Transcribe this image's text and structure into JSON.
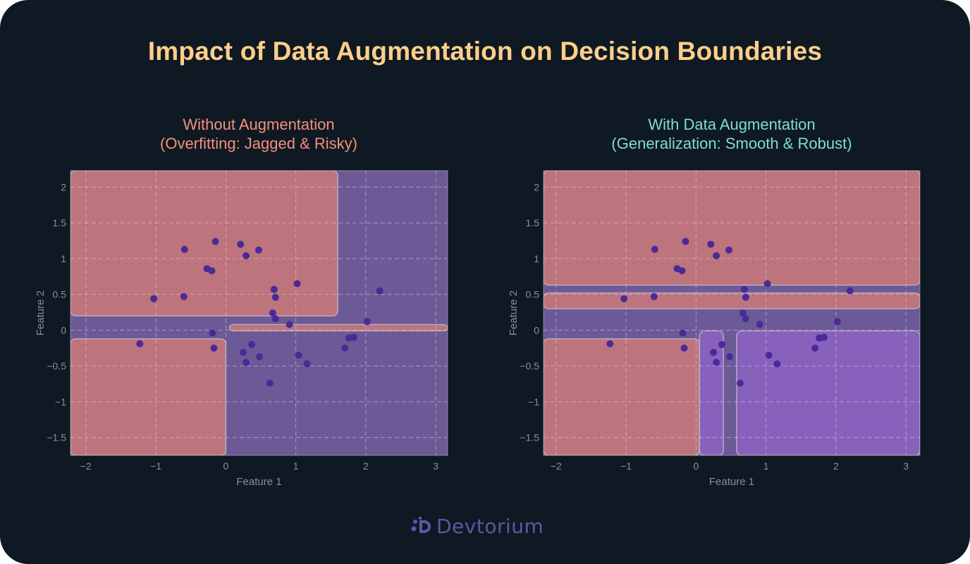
{
  "title": "Impact of Data Augmentation on Decision Boundaries",
  "brand": "Devtorium",
  "colors": {
    "background": "#0f1923",
    "title": "#ffcf8a",
    "left_subtitle": "#f3917c",
    "right_subtitle": "#7fdcd2",
    "region_red": "#bd747c",
    "region_blue": "#6c5a97",
    "region_purple": "#8861bd",
    "points": "#4a2a98",
    "axis_text": "#8a8f96"
  },
  "chart_data": [
    {
      "type": "scatter",
      "title_line1": "Without Augmentation",
      "title_line2": "(Overfitting: Jagged & Risky)",
      "xlabel": "Feature 1",
      "ylabel": "Feature 2",
      "xlim": [
        -2.22,
        3.17
      ],
      "ylim": [
        -1.75,
        2.23
      ],
      "x_ticks": [
        -2,
        -1,
        0,
        1,
        2,
        3
      ],
      "x_tick_labels": [
        "−2",
        "−1",
        "0",
        "1",
        "2",
        "3"
      ],
      "y_ticks": [
        -1.5,
        -1,
        -0.5,
        0,
        0.5,
        1,
        1.5,
        2
      ],
      "y_tick_labels": [
        "−1.5",
        "−1",
        "−0.5",
        "0",
        "0.5",
        "1",
        "1.5",
        "2"
      ],
      "grid": true,
      "background_region": "blue",
      "regions": [
        {
          "class": "red",
          "x0": -2.22,
          "x1": 1.6,
          "y0": 0.2,
          "y1": 2.23
        },
        {
          "class": "red",
          "x0": -2.22,
          "x1": 0.0,
          "y0": -1.75,
          "y1": -0.12
        },
        {
          "class": "red",
          "x0": 0.05,
          "x1": 3.17,
          "y0": -0.01,
          "y1": 0.08
        }
      ],
      "points": [
        {
          "x": -0.59,
          "y": 1.13
        },
        {
          "x": -0.15,
          "y": 1.24
        },
        {
          "x": 0.21,
          "y": 1.2
        },
        {
          "x": 0.29,
          "y": 1.04
        },
        {
          "x": 0.47,
          "y": 1.12
        },
        {
          "x": -0.27,
          "y": 0.86
        },
        {
          "x": -0.2,
          "y": 0.83
        },
        {
          "x": -1.03,
          "y": 0.44
        },
        {
          "x": -0.6,
          "y": 0.47
        },
        {
          "x": 0.69,
          "y": 0.57
        },
        {
          "x": 1.02,
          "y": 0.65
        },
        {
          "x": 0.71,
          "y": 0.46
        },
        {
          "x": 0.67,
          "y": 0.24
        },
        {
          "x": 0.71,
          "y": 0.16
        },
        {
          "x": 0.91,
          "y": 0.08
        },
        {
          "x": 2.2,
          "y": 0.55
        },
        {
          "x": 2.02,
          "y": 0.12
        },
        {
          "x": -0.19,
          "y": -0.04
        },
        {
          "x": -1.23,
          "y": -0.19
        },
        {
          "x": -0.17,
          "y": -0.25
        },
        {
          "x": 0.37,
          "y": -0.2
        },
        {
          "x": 0.25,
          "y": -0.31
        },
        {
          "x": 0.48,
          "y": -0.37
        },
        {
          "x": 0.29,
          "y": -0.45
        },
        {
          "x": 1.04,
          "y": -0.35
        },
        {
          "x": 1.16,
          "y": -0.47
        },
        {
          "x": 1.76,
          "y": -0.11
        },
        {
          "x": 1.83,
          "y": -0.1
        },
        {
          "x": 1.7,
          "y": -0.25
        },
        {
          "x": 0.63,
          "y": -0.74
        }
      ]
    },
    {
      "type": "scatter",
      "title_line1": "With Data Augmentation",
      "title_line2": "(Generalization: Smooth & Robust)",
      "xlabel": "Feature 1",
      "ylabel": "Feature 2",
      "xlim": [
        -2.18,
        3.2
      ],
      "ylim": [
        -1.75,
        2.23
      ],
      "x_ticks": [
        -2,
        -1,
        0,
        1,
        2,
        3
      ],
      "x_tick_labels": [
        "−2",
        "−1",
        "0",
        "1",
        "2",
        "3"
      ],
      "y_ticks": [
        -1.5,
        -1,
        -0.5,
        0,
        0.5,
        1,
        1.5,
        2
      ],
      "y_tick_labels": [
        "−1.5",
        "−1",
        "−0.5",
        "0",
        "0.5",
        "1",
        "1.5",
        "2"
      ],
      "grid": true,
      "background_region": "blue",
      "regions": [
        {
          "class": "red",
          "x0": -2.18,
          "x1": 3.2,
          "y0": 0.63,
          "y1": 2.23
        },
        {
          "class": "red",
          "x0": -2.18,
          "x1": 3.2,
          "y0": 0.3,
          "y1": 0.52
        },
        {
          "class": "red",
          "x0": -2.18,
          "x1": 0.05,
          "y0": -1.75,
          "y1": -0.12
        },
        {
          "class": "purple",
          "x0": 0.05,
          "x1": 0.39,
          "y0": -1.75,
          "y1": -0.01
        },
        {
          "class": "purple",
          "x0": 0.58,
          "x1": 3.2,
          "y0": -1.75,
          "y1": -0.01
        }
      ],
      "points": [
        {
          "x": -0.59,
          "y": 1.13
        },
        {
          "x": -0.15,
          "y": 1.24
        },
        {
          "x": 0.21,
          "y": 1.2
        },
        {
          "x": 0.29,
          "y": 1.04
        },
        {
          "x": 0.47,
          "y": 1.12
        },
        {
          "x": -0.27,
          "y": 0.86
        },
        {
          "x": -0.2,
          "y": 0.83
        },
        {
          "x": -1.03,
          "y": 0.44
        },
        {
          "x": -0.6,
          "y": 0.47
        },
        {
          "x": 0.69,
          "y": 0.57
        },
        {
          "x": 1.02,
          "y": 0.65
        },
        {
          "x": 0.71,
          "y": 0.46
        },
        {
          "x": 0.67,
          "y": 0.24
        },
        {
          "x": 0.71,
          "y": 0.16
        },
        {
          "x": 0.91,
          "y": 0.08
        },
        {
          "x": 2.2,
          "y": 0.55
        },
        {
          "x": 2.02,
          "y": 0.12
        },
        {
          "x": -0.19,
          "y": -0.04
        },
        {
          "x": -1.23,
          "y": -0.19
        },
        {
          "x": -0.17,
          "y": -0.25
        },
        {
          "x": 0.37,
          "y": -0.2
        },
        {
          "x": 0.25,
          "y": -0.31
        },
        {
          "x": 0.48,
          "y": -0.37
        },
        {
          "x": 0.29,
          "y": -0.45
        },
        {
          "x": 1.04,
          "y": -0.35
        },
        {
          "x": 1.16,
          "y": -0.47
        },
        {
          "x": 1.76,
          "y": -0.11
        },
        {
          "x": 1.83,
          "y": -0.1
        },
        {
          "x": 1.7,
          "y": -0.25
        },
        {
          "x": 0.63,
          "y": -0.74
        }
      ]
    }
  ]
}
